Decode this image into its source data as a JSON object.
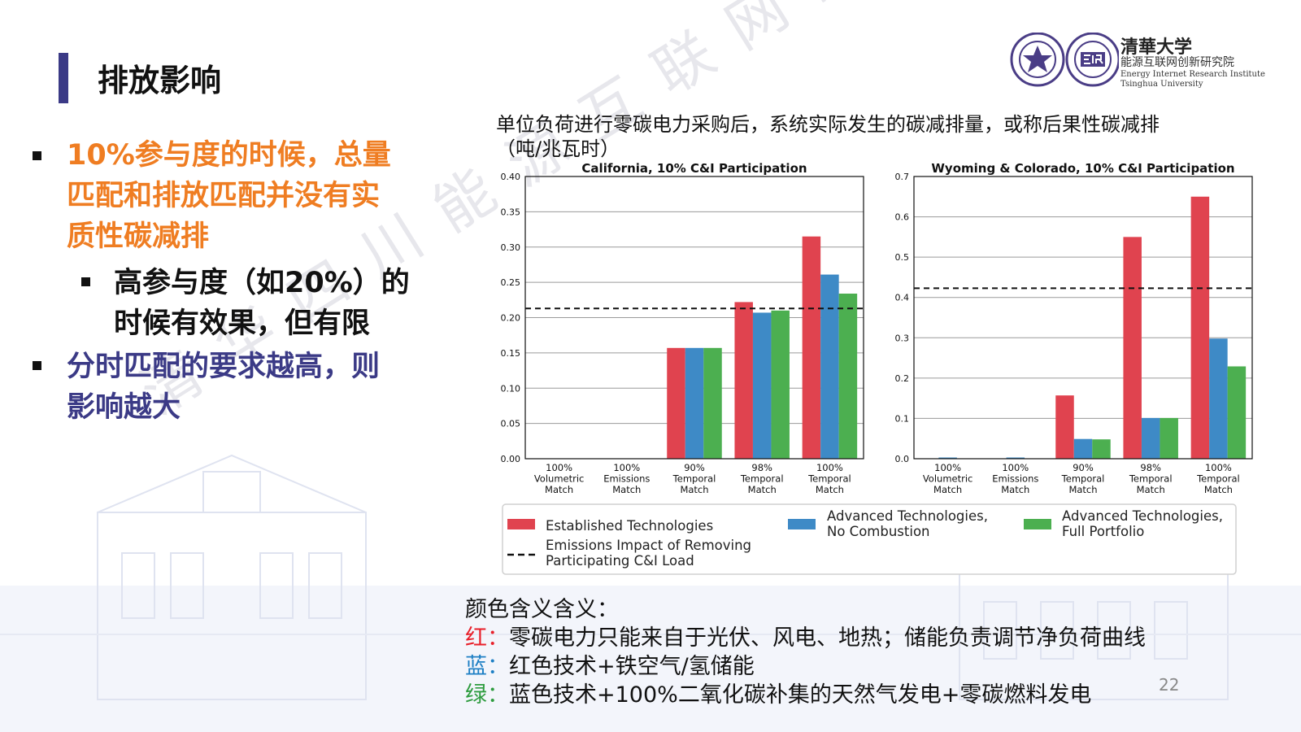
{
  "slide": {
    "title": "排放影响",
    "page_number": "22",
    "watermark": "清华四川能源互联网研究院"
  },
  "bullets": [
    {
      "text": [
        "10%参与度的时候，总量",
        "匹配和排放匹配并没有实",
        "质性碳减排"
      ],
      "color": "#ef7d22"
    },
    {
      "text": [
        "高参与度（如20%）的",
        "时候有效果，但有限"
      ],
      "color": "#111111"
    },
    {
      "text": [
        "分时匹配的要求越高，则",
        "影响越大"
      ],
      "color": "#3b3a86"
    }
  ],
  "logos": {
    "emblem_icon": "tsinghua-emblem-icon",
    "eiri_icon": "eiri-logo-icon",
    "brush_text": "清華大学",
    "cn_name": "能源互联网创新研究院",
    "en_name_1": "Energy Internet Research Institute",
    "en_name_2": "Tsinghua University"
  },
  "chart_caption": [
    "单位负荷进行零碳电力采购后，系统实际发生的碳减排量，或称后果性碳减排",
    "（吨/兆瓦时）"
  ],
  "chart_data": [
    {
      "type": "bar",
      "title": "California, 10% C&I Participation",
      "categories": [
        [
          "100%",
          "Volumetric",
          "Match"
        ],
        [
          "100%",
          "Emissions",
          "Match"
        ],
        [
          "90%",
          "Temporal",
          "Match"
        ],
        [
          "98%",
          "Temporal",
          "Match"
        ],
        [
          "100%",
          "Temporal",
          "Match"
        ]
      ],
      "series": [
        {
          "name": "Established Technologies",
          "color": "#e0434f",
          "values": [
            0.0,
            0.0,
            0.157,
            0.222,
            0.315
          ]
        },
        {
          "name": "Advanced Technologies, No Combustion",
          "color": "#3e8ac6",
          "values": [
            0.0,
            0.0,
            0.157,
            0.207,
            0.261
          ]
        },
        {
          "name": "Advanced Technologies, Full Portfolio",
          "color": "#4caf50",
          "values": [
            0.0,
            0.0,
            0.157,
            0.21,
            0.234
          ]
        }
      ],
      "reference_line": {
        "name": "Emissions Impact of Removing Participating C&I Load",
        "value": 0.213
      },
      "ylim": [
        0,
        0.4
      ],
      "yticks": [
        "0.00",
        "0.05",
        "0.10",
        "0.15",
        "0.20",
        "0.25",
        "0.30",
        "0.35",
        "0.40"
      ],
      "grid": "horizontal"
    },
    {
      "type": "bar",
      "title": "Wyoming & Colorado, 10% C&I Participation",
      "categories": [
        [
          "100%",
          "Volumetric",
          "Match"
        ],
        [
          "100%",
          "Emissions",
          "Match"
        ],
        [
          "90%",
          "Temporal",
          "Match"
        ],
        [
          "98%",
          "Temporal",
          "Match"
        ],
        [
          "100%",
          "Temporal",
          "Match"
        ]
      ],
      "series": [
        {
          "name": "Established Technologies",
          "color": "#e0434f",
          "values": [
            0.0,
            0.0,
            0.157,
            0.55,
            0.65
          ]
        },
        {
          "name": "Advanced Technologies, No Combustion",
          "color": "#3e8ac6",
          "values": [
            0.003,
            0.003,
            0.049,
            0.101,
            0.298
          ]
        },
        {
          "name": "Advanced Technologies, Full Portfolio",
          "color": "#4caf50",
          "values": [
            0.0,
            0.0,
            0.048,
            0.101,
            0.229
          ]
        }
      ],
      "reference_line": {
        "name": "Emissions Impact of Removing Participating C&I Load",
        "value": 0.423
      },
      "ylim": [
        0,
        0.7
      ],
      "yticks": [
        "0.0",
        "0.1",
        "0.2",
        "0.3",
        "0.4",
        "0.5",
        "0.6",
        "0.7"
      ],
      "grid": "horizontal"
    }
  ],
  "legend": {
    "placement": "bottom",
    "items": [
      {
        "kind": "bar",
        "color": "#e0434f",
        "lines": [
          "Established Technologies"
        ]
      },
      {
        "kind": "bar",
        "color": "#3e8ac6",
        "lines": [
          "Advanced Technologies,",
          "No Combustion"
        ]
      },
      {
        "kind": "bar",
        "color": "#4caf50",
        "lines": [
          "Advanced Technologies,",
          "Full Portfolio"
        ]
      },
      {
        "kind": "dashed",
        "color": "#111111",
        "lines": [
          "Emissions Impact of Removing",
          "Participating C&I Load"
        ]
      }
    ]
  },
  "notes": {
    "heading": "颜色含义含义：",
    "items": [
      {
        "label": "红：",
        "color": "#e8202a",
        "text": "零碳电力只能来自于光伏、风电、地热；储能负责调节净负荷曲线"
      },
      {
        "label": "蓝：",
        "color": "#1d7fc4",
        "text": "红色技术+铁空气/氢储能"
      },
      {
        "label": "绿：",
        "color": "#2e9c3f",
        "text": "蓝色技术+100%二氧化碳补集的天然气发电+零碳燃料发电"
      }
    ]
  }
}
